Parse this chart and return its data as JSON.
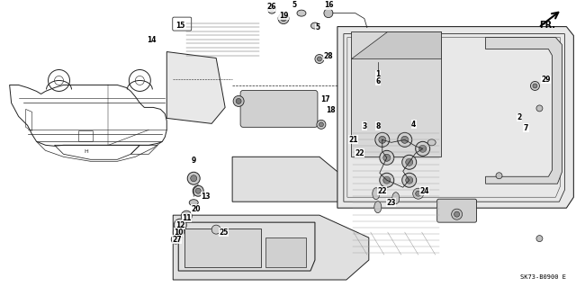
{
  "background_color": "#ffffff",
  "diagram_code": "SK73-B0900 E",
  "fr_label": "FR.",
  "fig_width": 6.4,
  "fig_height": 3.19,
  "dpi": 100,
  "gray": "#222222",
  "lgray": "#666666",
  "panel_fill": "#e8e8e8",
  "lens_fill": "#bbbbbb",
  "hatch_color": "#999999"
}
